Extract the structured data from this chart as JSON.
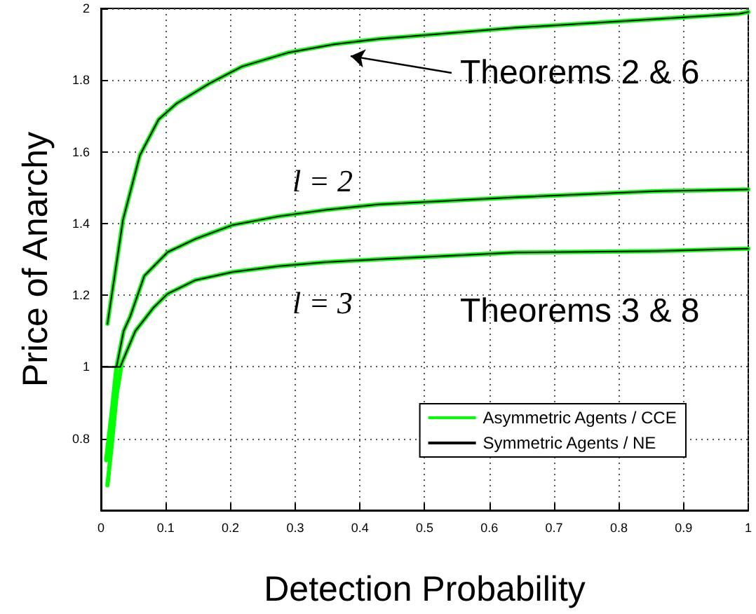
{
  "chart_data": {
    "type": "line",
    "xlabel": "Detection Probability",
    "ylabel": "Price of Anarchy",
    "xlim": [
      0,
      1
    ],
    "xticks": [
      0,
      0.1,
      0.2,
      0.3,
      0.4,
      0.5,
      0.6,
      0.7,
      0.8,
      0.9,
      1
    ],
    "ylim": [
      0.6,
      2
    ],
    "yticks": [
      0.8,
      1,
      1.2,
      1.4,
      1.6,
      1.8,
      2
    ],
    "grid": true,
    "legend": "bottom right",
    "series": [
      {
        "name": "Asymmetric Agents / CCE",
        "color": "#00ff00",
        "x": [
          0.01,
          0.034,
          0.06,
          0.089,
          0.117,
          0.167,
          0.218,
          0.29,
          0.36,
          0.43,
          0.64,
          0.857,
          0.986,
          1
        ],
        "values": [
          1.12,
          1.41,
          1.59,
          1.69,
          1.735,
          1.79,
          1.838,
          1.877,
          1.9,
          1.915,
          1.946,
          1.97,
          1.985,
          1.99
        ]
      },
      {
        "color": "#00ff00",
        "x": [
          0.008,
          0.017,
          0.024,
          0.035,
          0.045,
          0.067,
          0.103,
          0.146,
          0.204,
          0.275,
          0.347,
          0.427,
          0.64,
          0.857,
          1
        ],
        "values": [
          0.74,
          0.88,
          1.0,
          1.1,
          1.14,
          1.254,
          1.32,
          1.357,
          1.396,
          1.42,
          1.438,
          1.453,
          1.473,
          1.49,
          1.495
        ]
      },
      {
        "color": "#00ff00",
        "x": [
          0.01,
          0.017,
          0.024,
          0.032,
          0.053,
          0.081,
          0.103,
          0.146,
          0.204,
          0.275,
          0.347,
          0.427,
          0.64,
          0.857,
          1
        ],
        "values": [
          0.67,
          0.79,
          0.92,
          1.01,
          1.1,
          1.165,
          1.204,
          1.242,
          1.265,
          1.281,
          1.292,
          1.3,
          1.319,
          1.323,
          1.33
        ]
      },
      {
        "name": "Symmetric Agents / NE",
        "color": "#000000",
        "x": [
          0.01,
          0.034,
          0.06,
          0.089,
          0.117,
          0.167,
          0.218,
          0.29,
          0.36,
          0.43,
          0.64,
          0.857,
          0.986,
          1
        ],
        "values": [
          1.12,
          1.41,
          1.59,
          1.69,
          1.735,
          1.79,
          1.838,
          1.877,
          1.9,
          1.915,
          1.946,
          1.97,
          1.985,
          1.99
        ]
      },
      {
        "color": "#000000",
        "x": [
          0,
          0.024,
          0.035,
          0.045,
          0.067,
          0.103,
          0.146,
          0.204,
          0.275,
          0.347,
          0.427,
          0.64,
          0.857,
          1
        ],
        "values": [
          1.0,
          1.0,
          1.1,
          1.14,
          1.254,
          1.32,
          1.357,
          1.396,
          1.42,
          1.438,
          1.453,
          1.473,
          1.49,
          1.495
        ]
      },
      {
        "color": "#000000",
        "x": [
          0,
          0.03,
          0.032,
          0.053,
          0.081,
          0.103,
          0.146,
          0.204,
          0.275,
          0.347,
          0.427,
          0.64,
          0.857,
          1
        ],
        "values": [
          1.0,
          1.0,
          1.01,
          1.1,
          1.165,
          1.204,
          1.242,
          1.265,
          1.281,
          1.292,
          1.3,
          1.319,
          1.323,
          1.33
        ]
      }
    ],
    "annotations": [
      "Theorems 2 & 6",
      "l = 2",
      "l = 3",
      "Theorems 3 & 8"
    ]
  }
}
